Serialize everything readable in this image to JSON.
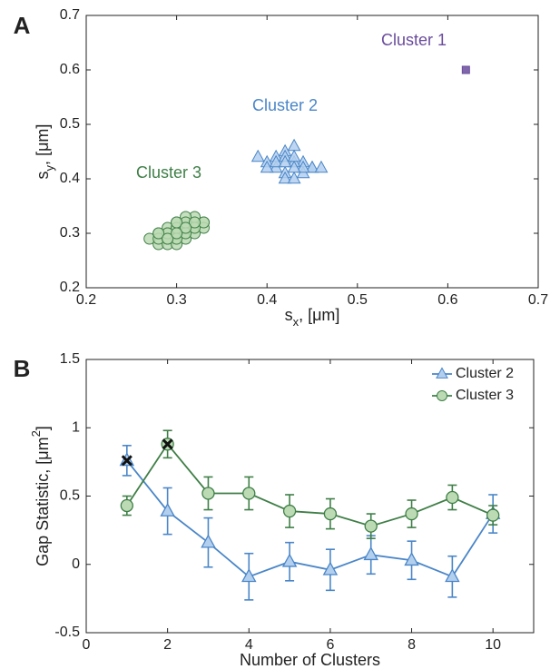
{
  "chart_data": [
    {
      "type": "scatter",
      "panel_label": "A",
      "xlabel": {
        "text": "s",
        "sub": "x",
        "rest": ", [μm]"
      },
      "ylabel": {
        "text": "s",
        "sub": "y",
        "rest": ", [μm]"
      },
      "xlim": [
        0.2,
        0.7
      ],
      "ylim": [
        0.2,
        0.7
      ],
      "xticks": [
        0.2,
        0.3,
        0.4,
        0.5,
        0.6,
        0.7
      ],
      "yticks": [
        0.2,
        0.3,
        0.4,
        0.5,
        0.6,
        0.7
      ],
      "series": [
        {
          "name": "Cluster 1",
          "color": "#6a4c9c",
          "face_color": "#6a4c9c",
          "marker": "square",
          "x": [
            0.62
          ],
          "y": [
            0.6
          ]
        },
        {
          "name": "Cluster 2",
          "color": "#4a86c8",
          "face_color": "#b3cfee",
          "marker": "triangle",
          "x": [
            0.4,
            0.41,
            0.42,
            0.43,
            0.44,
            0.45,
            0.41,
            0.42,
            0.43,
            0.44,
            0.4,
            0.42,
            0.43,
            0.45,
            0.41,
            0.44,
            0.42,
            0.43,
            0.39,
            0.46,
            0.43,
            0.42
          ],
          "y": [
            0.43,
            0.44,
            0.45,
            0.46,
            0.43,
            0.42,
            0.42,
            0.41,
            0.43,
            0.41,
            0.42,
            0.4,
            0.4,
            0.42,
            0.43,
            0.42,
            0.44,
            0.42,
            0.44,
            0.42,
            0.44,
            0.43
          ]
        },
        {
          "name": "Cluster 3",
          "color": "#3f7f47",
          "face_color": "#bcdbb4",
          "marker": "circle",
          "x": [
            0.27,
            0.28,
            0.28,
            0.29,
            0.29,
            0.29,
            0.3,
            0.3,
            0.3,
            0.3,
            0.31,
            0.31,
            0.31,
            0.31,
            0.32,
            0.32,
            0.32,
            0.33,
            0.33,
            0.28,
            0.29,
            0.3,
            0.31,
            0.32,
            0.29,
            0.3,
            0.31,
            0.3,
            0.29,
            0.31,
            0.32,
            0.28,
            0.3,
            0.31,
            0.33,
            0.29,
            0.3,
            0.32,
            0.31,
            0.3
          ],
          "y": [
            0.29,
            0.3,
            0.28,
            0.29,
            0.31,
            0.28,
            0.3,
            0.29,
            0.31,
            0.32,
            0.3,
            0.31,
            0.32,
            0.29,
            0.31,
            0.32,
            0.33,
            0.32,
            0.31,
            0.29,
            0.3,
            0.28,
            0.31,
            0.3,
            0.29,
            0.3,
            0.33,
            0.31,
            0.3,
            0.32,
            0.31,
            0.3,
            0.29,
            0.3,
            0.32,
            0.29,
            0.32,
            0.32,
            0.31,
            0.3
          ]
        }
      ]
    },
    {
      "type": "line",
      "panel_label": "B",
      "xlabel": "Number of Clusters",
      "ylabel": {
        "text": "Gap Statistic, [μm",
        "sup": "2",
        "rest": "]"
      },
      "xlim": [
        0,
        11
      ],
      "ylim": [
        -0.5,
        1.5
      ],
      "xticks": [
        0,
        2,
        4,
        6,
        8,
        10
      ],
      "yticks": [
        -0.5,
        0,
        0.5,
        1,
        1.5
      ],
      "legend": "upper right",
      "x": [
        1,
        2,
        3,
        4,
        5,
        6,
        7,
        8,
        9,
        10
      ],
      "series": [
        {
          "name": "Cluster 2",
          "color": "#4a86c8",
          "face_color": "#b3cfee",
          "marker": "triangle",
          "values": [
            0.76,
            0.39,
            0.16,
            -0.09,
            0.02,
            -0.04,
            0.07,
            0.03,
            -0.09,
            0.37
          ],
          "errors": [
            0.11,
            0.17,
            0.18,
            0.17,
            0.14,
            0.15,
            0.14,
            0.14,
            0.15,
            0.14
          ]
        },
        {
          "name": "Cluster 3",
          "color": "#3f7f47",
          "face_color": "#bcdbb4",
          "marker": "circle",
          "values": [
            0.43,
            0.88,
            0.52,
            0.52,
            0.39,
            0.37,
            0.28,
            0.37,
            0.49,
            0.36
          ],
          "errors": [
            0.07,
            0.1,
            0.12,
            0.12,
            0.12,
            0.11,
            0.09,
            0.1,
            0.09,
            0.07
          ]
        }
      ],
      "optimal_markers": {
        "x": [
          1,
          2
        ],
        "y": [
          0.76,
          0.88
        ],
        "color": "#111111"
      }
    }
  ]
}
